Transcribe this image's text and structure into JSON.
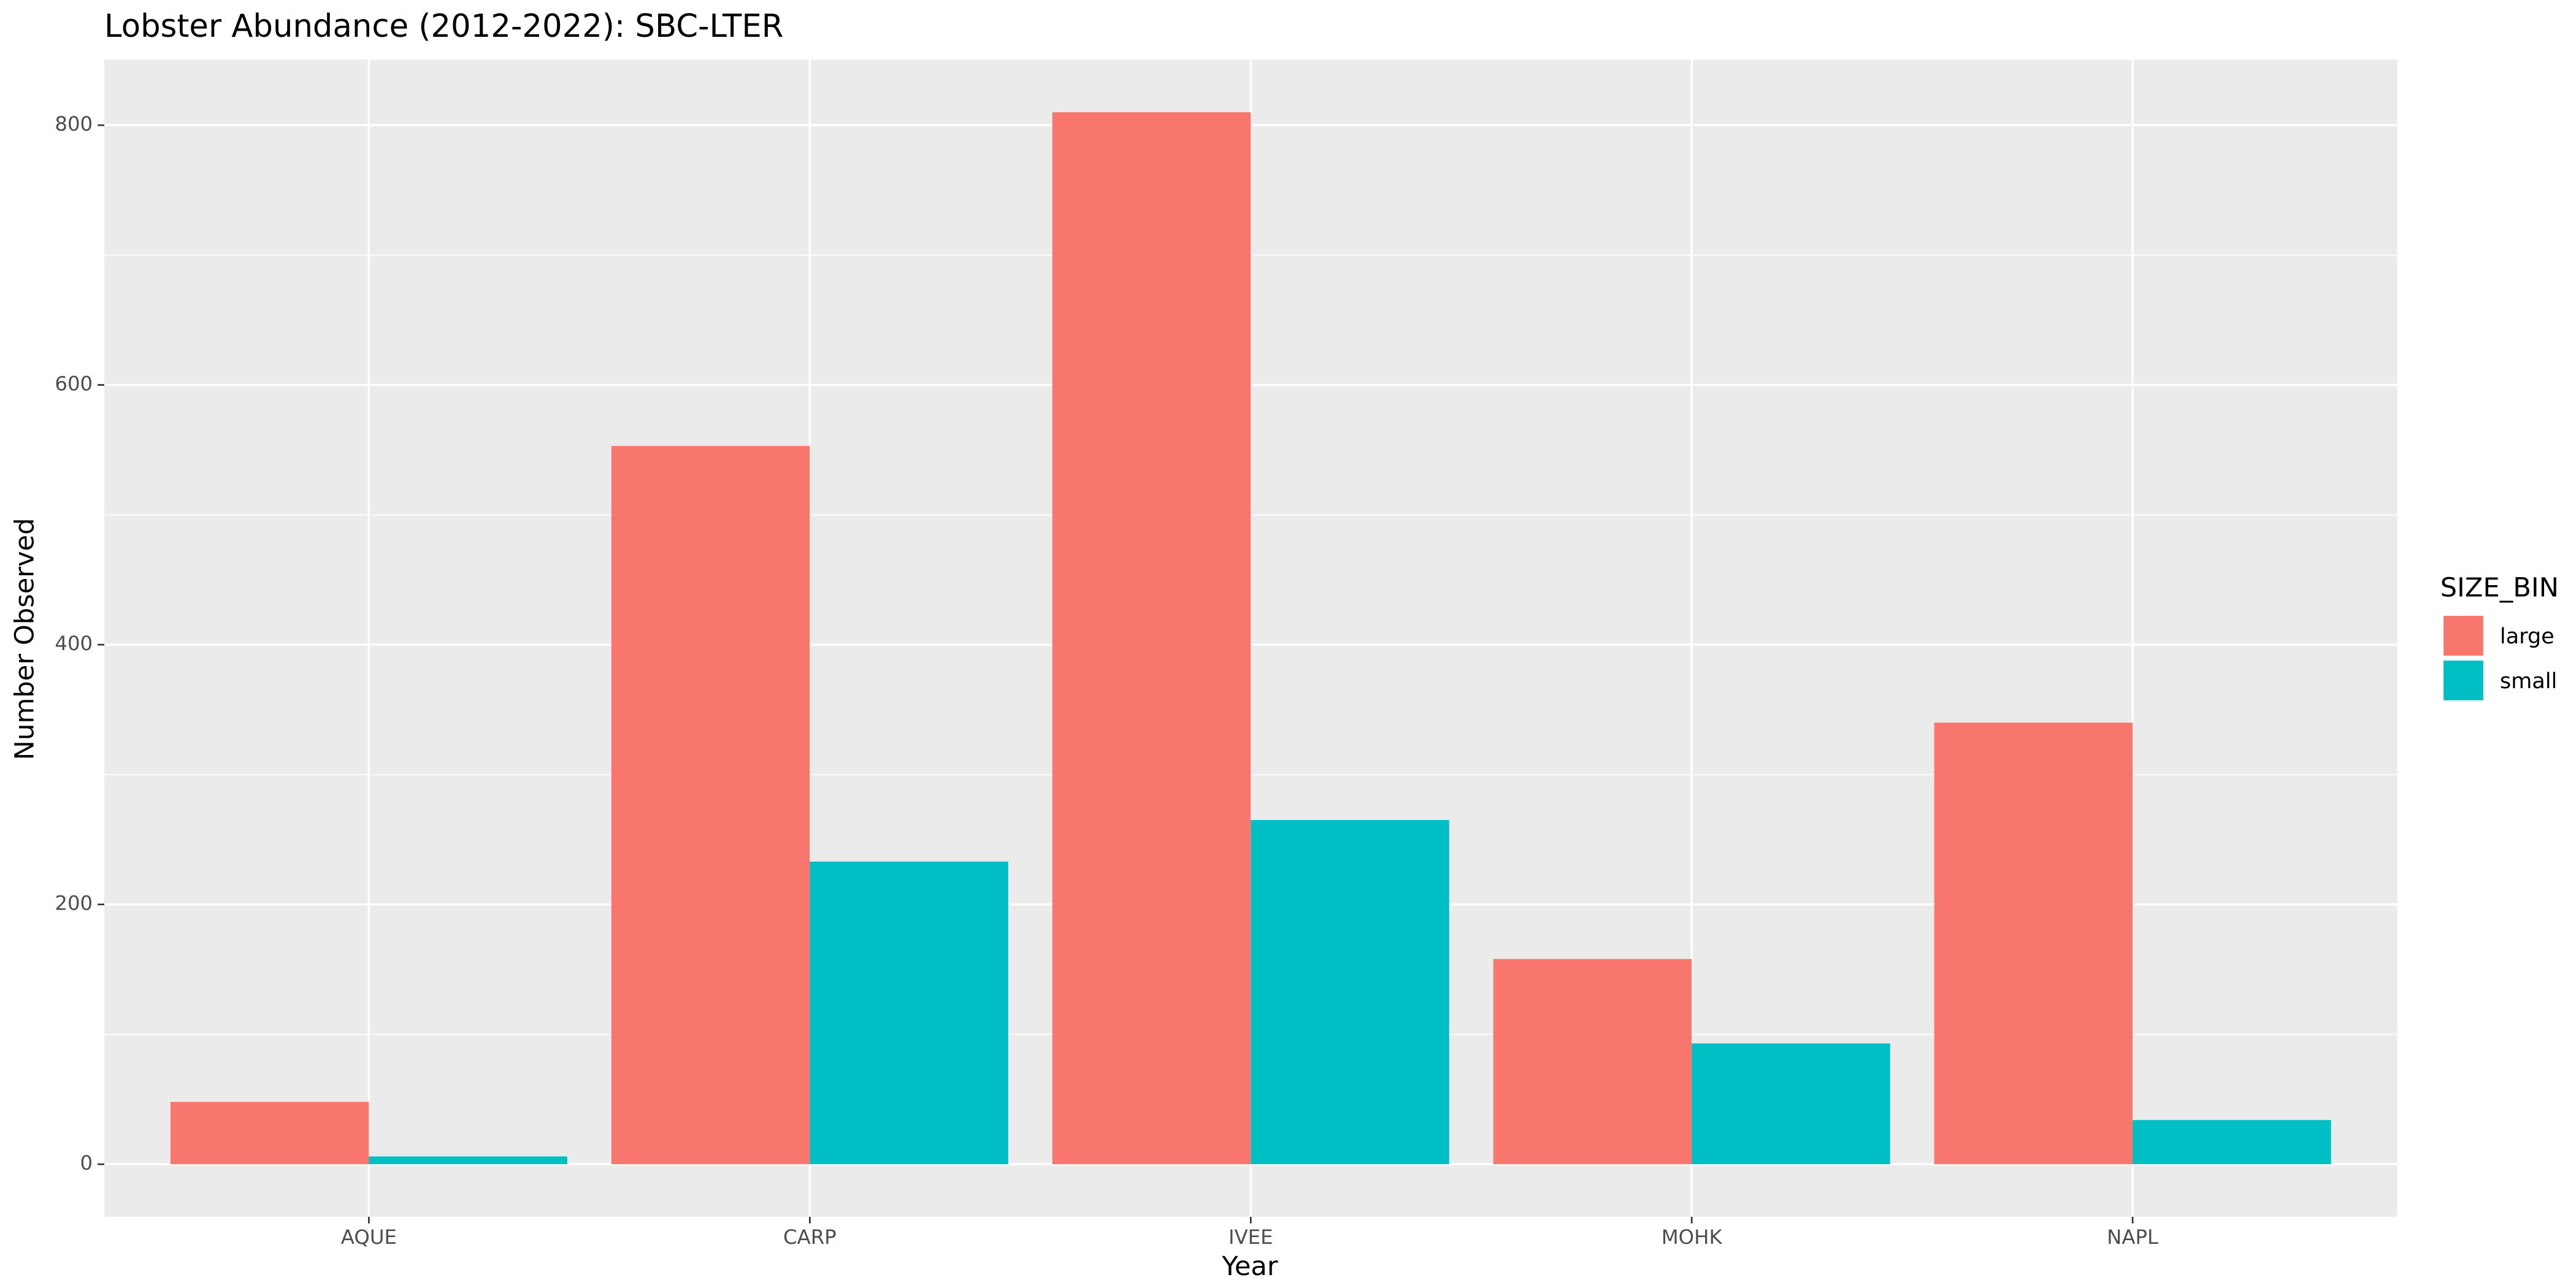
{
  "chart_data": {
    "type": "bar",
    "title": "Lobster Abundance (2012-2022): SBC-LTER",
    "x_label": "Year",
    "y_label": "Number Observed",
    "categories": [
      "AQUE",
      "CARP",
      "IVEE",
      "MOHK",
      "NAPL"
    ],
    "series": [
      {
        "name": "large",
        "color": "#F8766D",
        "values": [
          48,
          553,
          810,
          158,
          340
        ]
      },
      {
        "name": "small",
        "color": "#00BFC4",
        "values": [
          6,
          233,
          265,
          93,
          34
        ]
      }
    ],
    "ylim": [
      -40.5,
      850.5
    ],
    "yticks": [
      0,
      200,
      400,
      600,
      800
    ],
    "grid": true,
    "legend_title": "SIZE_BIN",
    "legend_position": "right"
  }
}
